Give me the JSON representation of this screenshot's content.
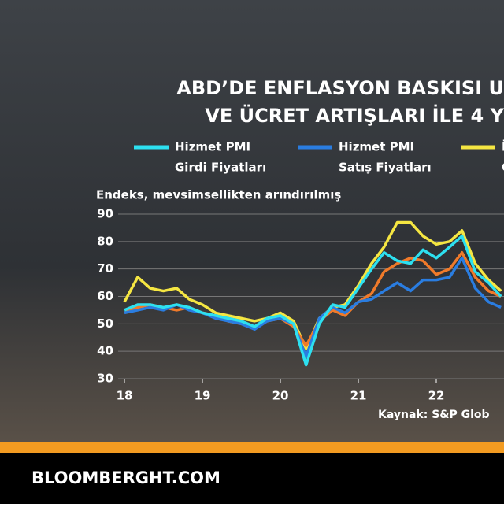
{
  "chart_data": {
    "type": "line",
    "title": [
      "ABD’DE ENFLASYON BASKISI U",
      "VE ÜCRET ARTIŞLARI İLE 4 Y"
    ],
    "y_label": "Endeks, mevsimsellikten arındırılmış",
    "source": "Kaynak: S&P Glob",
    "footer": "BLOOMBERGHT.COM",
    "x": [
      18.0,
      18.17,
      18.33,
      18.5,
      18.67,
      18.83,
      19.0,
      19.17,
      19.33,
      19.5,
      19.67,
      19.83,
      20.0,
      20.17,
      20.33,
      20.5,
      20.67,
      20.83,
      21.0,
      21.17,
      21.33,
      21.5,
      21.67,
      21.83,
      22.0,
      22.17,
      22.33,
      22.5,
      22.67,
      22.83
    ],
    "xlim": [
      18,
      22.9
    ],
    "xticks": [
      18,
      19,
      20,
      21,
      22
    ],
    "ylim": [
      30,
      90
    ],
    "yticks": [
      30,
      40,
      50,
      60,
      70,
      80,
      90
    ],
    "grid": true,
    "series": [
      {
        "name": [
          "İ",
          "C"
        ],
        "color": "#f5e642",
        "values": [
          58,
          67,
          63,
          62,
          63,
          59,
          57,
          54,
          53,
          52,
          51,
          52,
          54,
          51,
          41,
          52,
          56,
          57,
          64,
          72,
          78,
          87,
          87,
          82,
          79,
          80,
          84,
          72,
          66,
          62
        ]
      },
      {
        "color": "#f07a2a",
        "values": [
          54,
          56,
          57,
          56,
          55,
          56,
          54,
          53,
          51,
          50,
          49,
          51,
          52,
          49,
          42,
          51,
          55,
          53,
          58,
          61,
          69,
          72,
          74,
          73,
          68,
          70,
          76,
          67,
          62,
          60
        ]
      },
      {
        "name": [
          "Hizmet PMI",
          "Satış Fiyatları"
        ],
        "color": "#2a7de1",
        "values": [
          54,
          55,
          56,
          55,
          57,
          55,
          54,
          52,
          51,
          50,
          48,
          51,
          52,
          50,
          38,
          52,
          56,
          54,
          58,
          59,
          62,
          65,
          62,
          66,
          66,
          67,
          74,
          63,
          58,
          56
        ]
      },
      {
        "name": [
          "Hizmet PMI",
          "Girdi Fiyatları"
        ],
        "color": "#2de0f0",
        "values": [
          55,
          57,
          57,
          56,
          57,
          56,
          54,
          53,
          52,
          51,
          49,
          52,
          53,
          50,
          35,
          50,
          57,
          56,
          63,
          70,
          76,
          73,
          72,
          77,
          74,
          78,
          82,
          69,
          65,
          60
        ]
      }
    ]
  }
}
